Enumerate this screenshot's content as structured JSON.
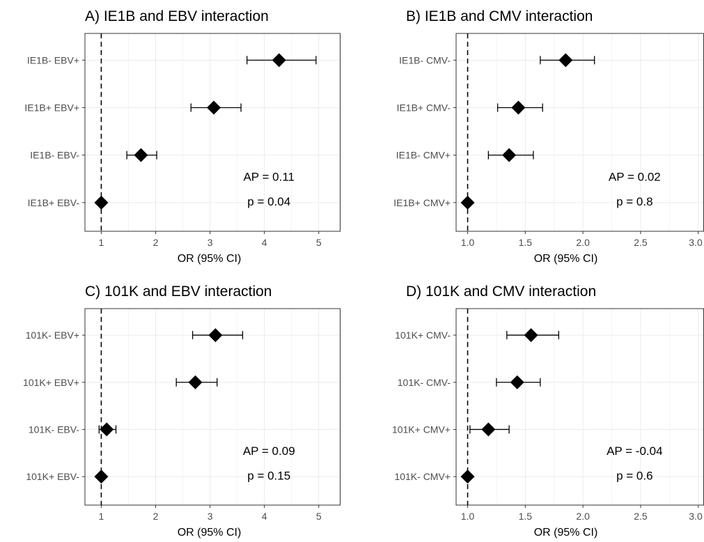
{
  "chart_data": [
    {
      "type": "scatter",
      "title": "A) IE1B and EBV interaction",
      "xlabel": "OR (95% CI)",
      "xlim": [
        0.7,
        5.4
      ],
      "xticks": [
        "1",
        "2",
        "3",
        "4",
        "5"
      ],
      "xtick_values": [
        1,
        2,
        3,
        4,
        5
      ],
      "reference_line": 1,
      "categories": [
        "IE1B-  EBV+",
        "IE1B+  EBV+",
        "IE1B-  EBV-",
        "IE1B+  EBV-"
      ],
      "or": [
        4.27,
        3.07,
        1.73,
        1.0
      ],
      "ci_low": [
        3.68,
        2.65,
        1.47,
        1.0
      ],
      "ci_high": [
        4.95,
        3.57,
        2.02,
        1.0
      ],
      "annotations": [
        "AP = 0.11",
        "p = 0.04"
      ],
      "grid": true
    },
    {
      "type": "scatter",
      "title": "B) IE1B and CMV interaction",
      "xlabel": "OR (95% CI)",
      "xlim": [
        0.9,
        3.05
      ],
      "xticks": [
        "1.0",
        "1.5",
        "2.0",
        "2.5",
        "3.0"
      ],
      "xtick_values": [
        1.0,
        1.5,
        2.0,
        2.5,
        3.0
      ],
      "reference_line": 1,
      "categories": [
        "IE1B-  CMV-",
        "IE1B+  CMV-",
        "IE1B-  CMV+",
        "IE1B+  CMV+"
      ],
      "or": [
        1.85,
        1.44,
        1.36,
        1.0
      ],
      "ci_low": [
        1.63,
        1.26,
        1.18,
        1.0
      ],
      "ci_high": [
        2.1,
        1.65,
        1.57,
        1.0
      ],
      "annotations": [
        "AP = 0.02",
        "p = 0.8"
      ],
      "grid": true
    },
    {
      "type": "scatter",
      "title": "C) 101K and EBV interaction",
      "xlabel": "OR (95% CI)",
      "xlim": [
        0.7,
        5.4
      ],
      "xticks": [
        "1",
        "2",
        "3",
        "4",
        "5"
      ],
      "xtick_values": [
        1,
        2,
        3,
        4,
        5
      ],
      "reference_line": 1,
      "categories": [
        "101K-  EBV+",
        "101K+  EBV+",
        "101K-  EBV-",
        "101K+  EBV-"
      ],
      "or": [
        3.1,
        2.73,
        1.1,
        1.0
      ],
      "ci_low": [
        2.68,
        2.38,
        0.96,
        1.0
      ],
      "ci_high": [
        3.6,
        3.13,
        1.27,
        1.0
      ],
      "annotations": [
        "AP = 0.09",
        "p = 0.15"
      ],
      "grid": true
    },
    {
      "type": "scatter",
      "title": "D) 101K and CMV interaction",
      "xlabel": "OR (95% CI)",
      "xlim": [
        0.9,
        3.05
      ],
      "xticks": [
        "1.0",
        "1.5",
        "2.0",
        "2.5",
        "3.0"
      ],
      "xtick_values": [
        1.0,
        1.5,
        2.0,
        2.5,
        3.0
      ],
      "reference_line": 1,
      "categories": [
        "101K+  CMV-",
        "101K-  CMV-",
        "101K+  CMV+",
        "101K-  CMV+"
      ],
      "or": [
        1.55,
        1.43,
        1.18,
        1.0
      ],
      "ci_low": [
        1.34,
        1.25,
        1.02,
        1.0
      ],
      "ci_high": [
        1.79,
        1.63,
        1.36,
        1.0
      ],
      "annotations": [
        "AP = -0.04",
        "p = 0.6"
      ],
      "grid": true
    }
  ]
}
